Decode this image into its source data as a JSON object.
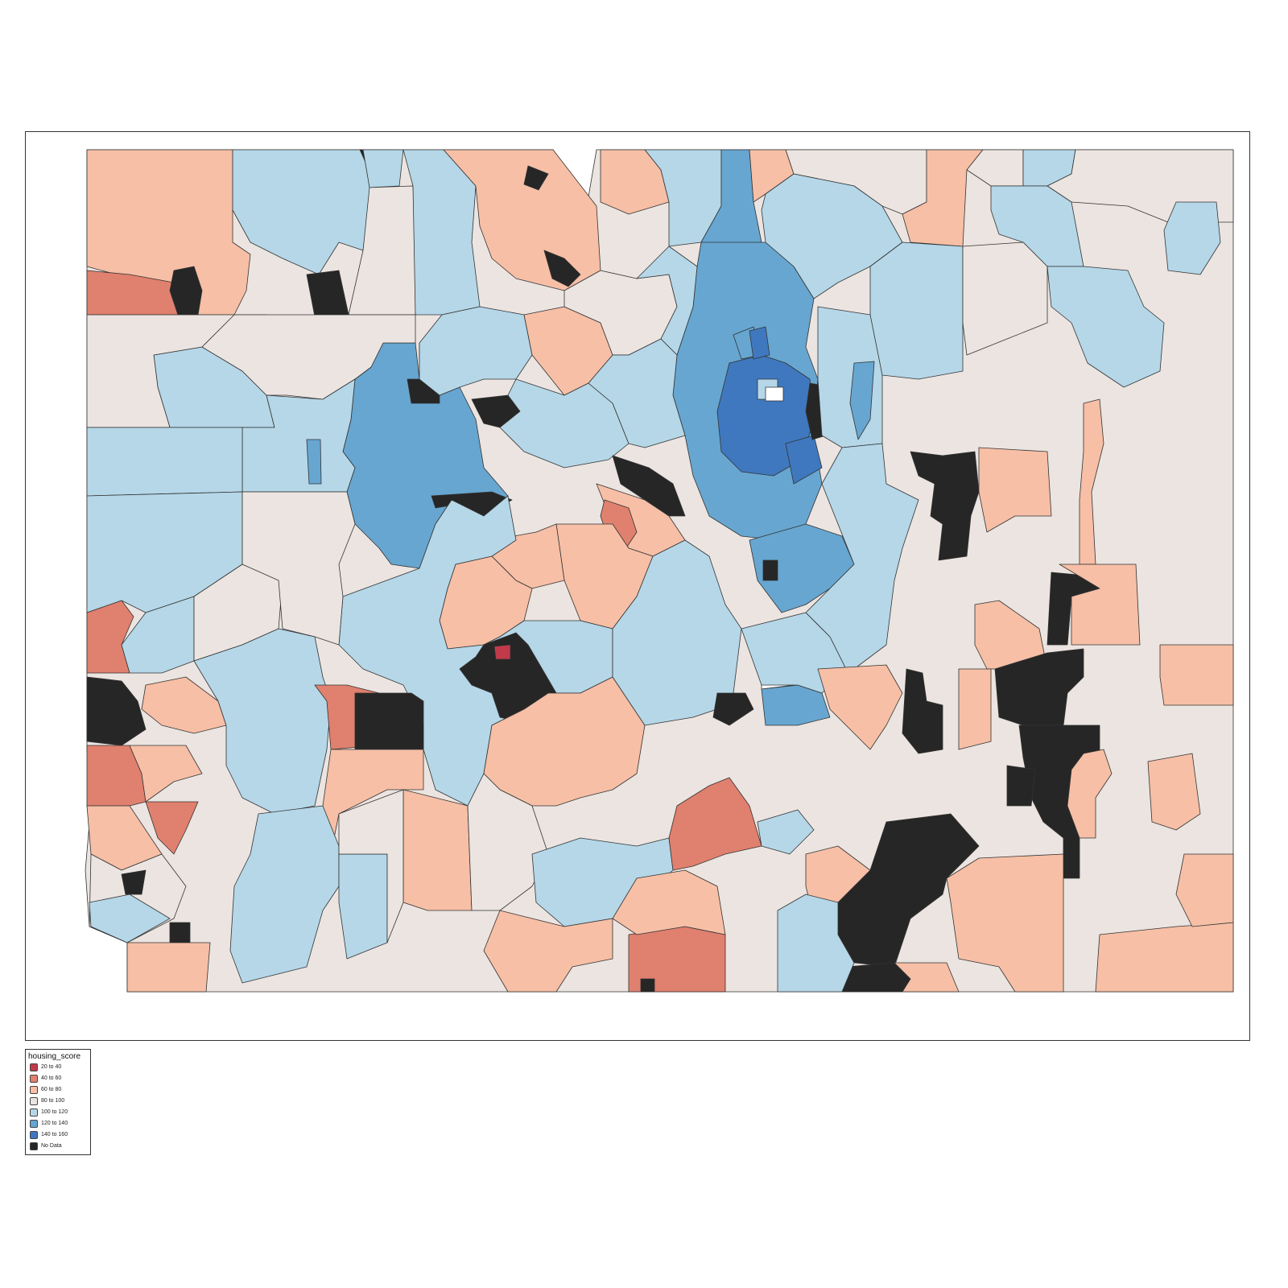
{
  "legend": {
    "title": "housing_score",
    "items": [
      {
        "label": "20 to 40",
        "color": "#c13a4a"
      },
      {
        "label": "40 to 60",
        "color": "#e0806e"
      },
      {
        "label": "60 to 80",
        "color": "#f6bfa6"
      },
      {
        "label": "80 to 100",
        "color": "#ebe4e0"
      },
      {
        "label": "100 to 120",
        "color": "#b5d7e8"
      },
      {
        "label": "120 to 140",
        "color": "#67a6d0"
      },
      {
        "label": "140 to 160",
        "color": "#3f78be"
      },
      {
        "label": "No Data",
        "color": "#262626"
      }
    ]
  }
}
